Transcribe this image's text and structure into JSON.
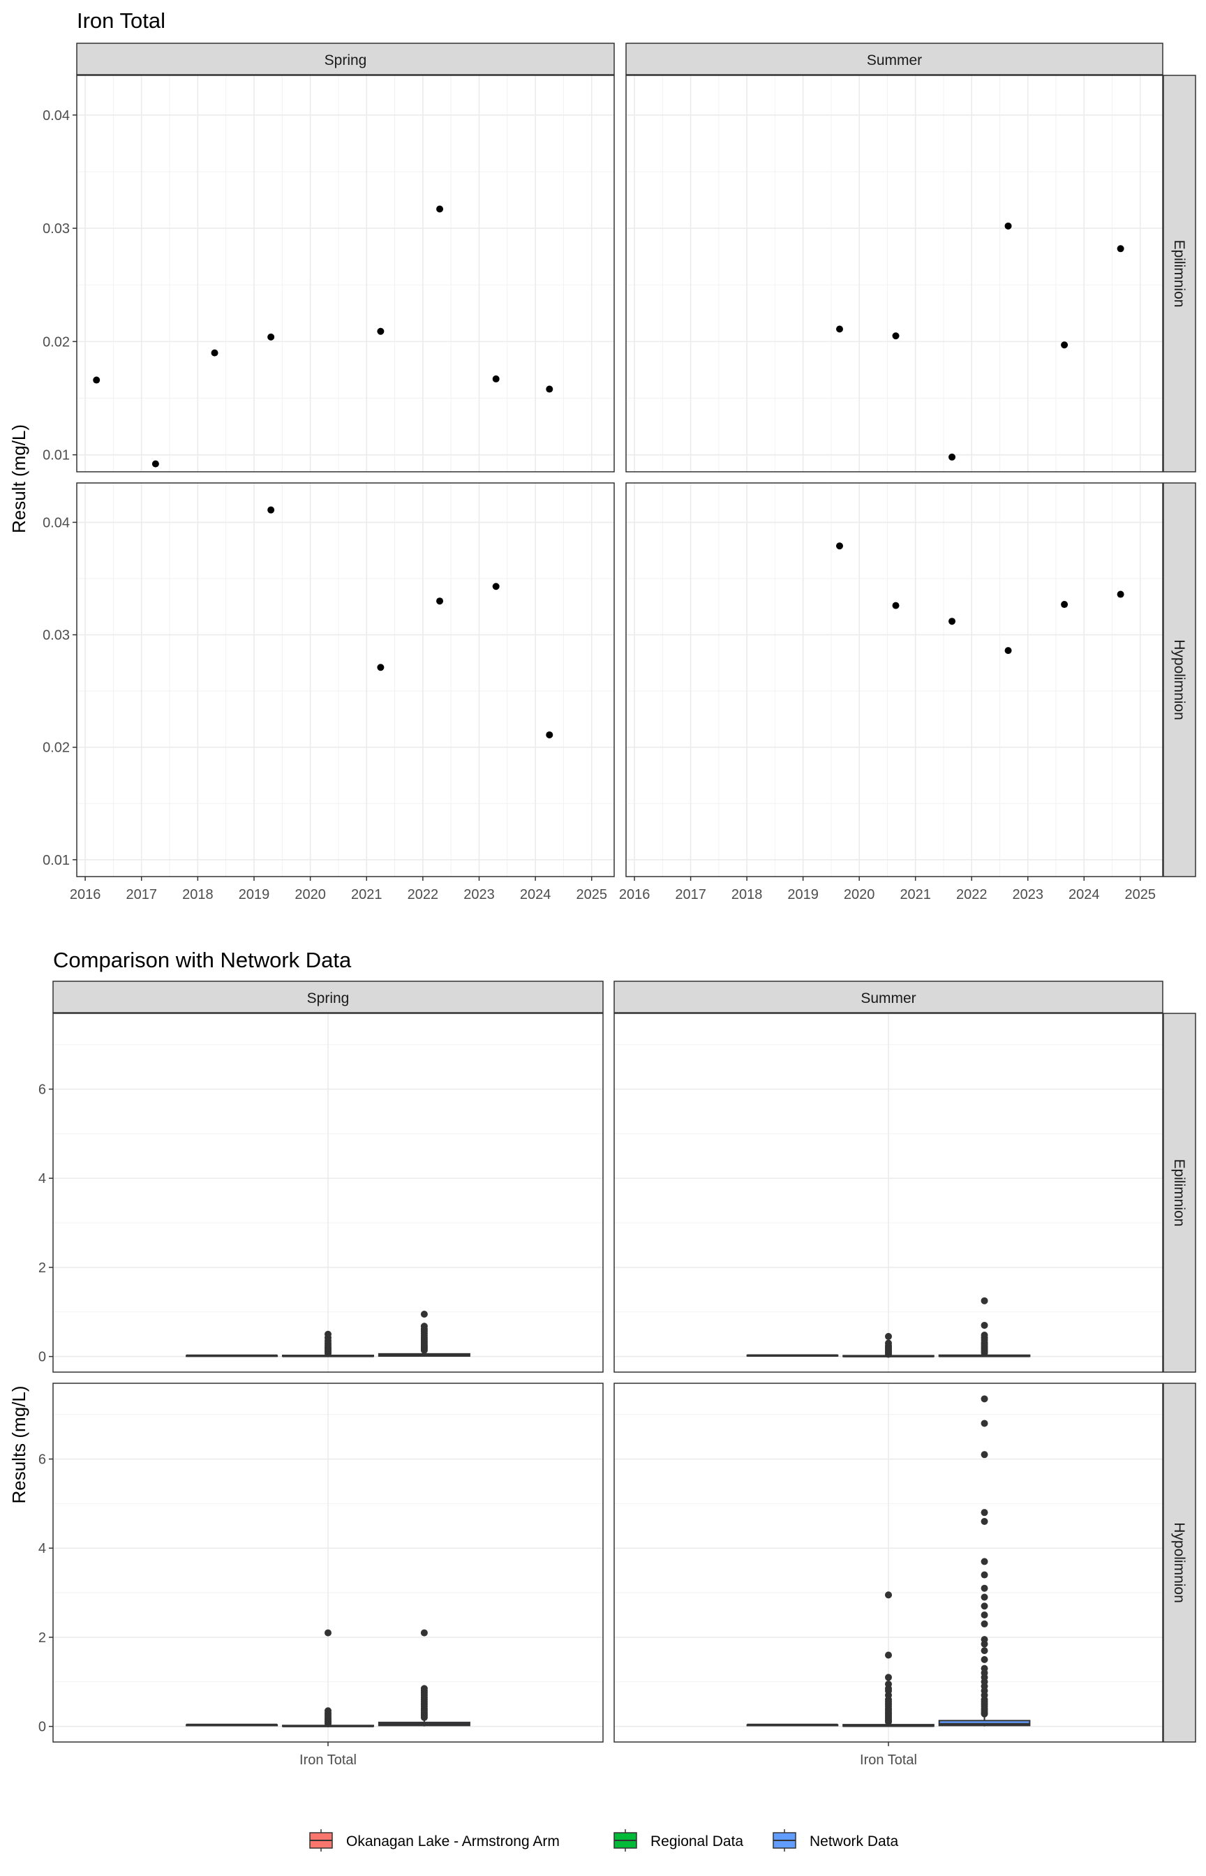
{
  "chart_data": [
    {
      "type": "scatter",
      "title": "Iron Total",
      "ylabel": "Result (mg/L)",
      "xlabel": "",
      "facet_cols": [
        "Spring",
        "Summer"
      ],
      "facet_rows": [
        "Epilimnion",
        "Hypolimnion"
      ],
      "x_ticks": [
        "2016",
        "2017",
        "2018",
        "2019",
        "2020",
        "2021",
        "2022",
        "2023",
        "2024",
        "2025"
      ],
      "y_ticks": [
        "0.01",
        "0.02",
        "0.03",
        "0.04"
      ],
      "xlim": [
        2015.85,
        2025.4
      ],
      "ylim": [
        0.0085,
        0.0435
      ],
      "grid": true,
      "panels": [
        {
          "col": "Spring",
          "row": "Epilimnion",
          "points": [
            [
              2016.2,
              0.0166
            ],
            [
              2017.25,
              0.0092
            ],
            [
              2018.3,
              0.019
            ],
            [
              2019.3,
              0.0204
            ],
            [
              2021.25,
              0.0209
            ],
            [
              2022.3,
              0.0317
            ],
            [
              2023.3,
              0.0167
            ],
            [
              2024.25,
              0.0158
            ]
          ]
        },
        {
          "col": "Summer",
          "row": "Epilimnion",
          "points": [
            [
              2019.65,
              0.0211
            ],
            [
              2020.65,
              0.0205
            ],
            [
              2021.65,
              0.0098
            ],
            [
              2022.65,
              0.0302
            ],
            [
              2023.65,
              0.0197
            ],
            [
              2024.65,
              0.0282
            ]
          ]
        },
        {
          "col": "Spring",
          "row": "Hypolimnion",
          "points": [
            [
              2019.3,
              0.0411
            ],
            [
              2021.25,
              0.0271
            ],
            [
              2022.3,
              0.033
            ],
            [
              2023.3,
              0.0343
            ],
            [
              2024.25,
              0.0211
            ]
          ]
        },
        {
          "col": "Summer",
          "row": "Hypolimnion",
          "points": [
            [
              2019.65,
              0.0379
            ],
            [
              2020.65,
              0.0326
            ],
            [
              2021.65,
              0.0312
            ],
            [
              2022.65,
              0.0286
            ],
            [
              2023.65,
              0.0327
            ],
            [
              2024.65,
              0.0336
            ]
          ]
        }
      ]
    },
    {
      "type": "box",
      "title": "Comparison with Network Data",
      "ylabel": "Results (mg/L)",
      "xlabel": "",
      "facet_cols": [
        "Spring",
        "Summer"
      ],
      "facet_rows": [
        "Epilimnion",
        "Hypolimnion"
      ],
      "categories": [
        "Iron Total"
      ],
      "y_ticks": [
        "0",
        "2",
        "4",
        "6"
      ],
      "ylim": [
        -0.35,
        7.7
      ],
      "grid": true,
      "series_names": [
        "Okanagan Lake - Armstrong Arm",
        "Regional Data",
        "Network Data"
      ],
      "series_colors": [
        "#F8766D",
        "#00BA38",
        "#619CFF"
      ],
      "panels": [
        {
          "col": "Spring",
          "row": "Epilimnion",
          "boxes": [
            {
              "series": "Okanagan Lake - Armstrong Arm",
              "q1": 0.015,
              "median": 0.018,
              "q3": 0.021,
              "whisker_low": 0.009,
              "whisker_high": 0.032,
              "outliers": []
            },
            {
              "series": "Regional Data",
              "q1": 0.005,
              "median": 0.012,
              "q3": 0.025,
              "whisker_low": 0.0,
              "whisker_high": 0.05,
              "outliers": [
                0.07,
                0.1,
                0.13,
                0.16,
                0.19,
                0.22,
                0.26,
                0.3,
                0.35,
                0.42,
                0.5
              ]
            },
            {
              "series": "Network Data",
              "q1": 0.01,
              "median": 0.025,
              "q3": 0.06,
              "whisker_low": 0.0,
              "whisker_high": 0.12,
              "outliers": [
                0.14,
                0.17,
                0.2,
                0.23,
                0.26,
                0.3,
                0.34,
                0.38,
                0.42,
                0.47,
                0.52,
                0.57,
                0.62,
                0.68,
                0.95
              ]
            }
          ]
        },
        {
          "col": "Summer",
          "row": "Epilimnion",
          "boxes": [
            {
              "series": "Okanagan Lake - Armstrong Arm",
              "q1": 0.017,
              "median": 0.021,
              "q3": 0.028,
              "whisker_low": 0.0098,
              "whisker_high": 0.0302,
              "outliers": []
            },
            {
              "series": "Regional Data",
              "q1": 0.003,
              "median": 0.008,
              "q3": 0.018,
              "whisker_low": 0.0,
              "whisker_high": 0.035,
              "outliers": [
                0.05,
                0.08,
                0.11,
                0.14,
                0.17,
                0.2,
                0.24,
                0.3,
                0.45
              ]
            },
            {
              "series": "Network Data",
              "q1": 0.005,
              "median": 0.012,
              "q3": 0.03,
              "whisker_low": 0.0,
              "whisker_high": 0.06,
              "outliers": [
                0.08,
                0.11,
                0.14,
                0.17,
                0.2,
                0.24,
                0.28,
                0.32,
                0.37,
                0.42,
                0.48,
                0.7,
                1.25
              ]
            }
          ]
        },
        {
          "col": "Spring",
          "row": "Hypolimnion",
          "boxes": [
            {
              "series": "Okanagan Lake - Armstrong Arm",
              "q1": 0.027,
              "median": 0.033,
              "q3": 0.0343,
              "whisker_low": 0.0211,
              "whisker_high": 0.0411,
              "outliers": []
            },
            {
              "series": "Regional Data",
              "q1": 0.003,
              "median": 0.008,
              "q3": 0.02,
              "whisker_low": 0.0,
              "whisker_high": 0.04,
              "outliers": [
                0.06,
                0.09,
                0.12,
                0.15,
                0.18,
                0.22,
                0.26,
                0.3,
                0.35,
                2.1
              ]
            },
            {
              "series": "Network Data",
              "q1": 0.02,
              "median": 0.05,
              "q3": 0.09,
              "whisker_low": 0.0,
              "whisker_high": 0.17,
              "outliers": [
                0.2,
                0.24,
                0.28,
                0.32,
                0.36,
                0.4,
                0.45,
                0.5,
                0.55,
                0.6,
                0.65,
                0.7,
                0.75,
                0.8,
                0.85,
                2.1
              ]
            }
          ]
        },
        {
          "col": "Summer",
          "row": "Hypolimnion",
          "boxes": [
            {
              "series": "Okanagan Lake - Armstrong Arm",
              "q1": 0.029,
              "median": 0.033,
              "q3": 0.034,
              "whisker_low": 0.0286,
              "whisker_high": 0.0379,
              "outliers": []
            },
            {
              "series": "Regional Data",
              "q1": 0.005,
              "median": 0.015,
              "q3": 0.04,
              "whisker_low": 0.0,
              "whisker_high": 0.08,
              "outliers": [
                0.1,
                0.13,
                0.16,
                0.2,
                0.24,
                0.28,
                0.32,
                0.36,
                0.4,
                0.45,
                0.5,
                0.55,
                0.6,
                0.7,
                0.8,
                0.85,
                0.95,
                1.1,
                1.6,
                2.95
              ]
            },
            {
              "series": "Network Data",
              "q1": 0.02,
              "median": 0.05,
              "q3": 0.13,
              "whisker_low": 0.0,
              "whisker_high": 0.25,
              "outliers": [
                0.28,
                0.32,
                0.36,
                0.4,
                0.45,
                0.5,
                0.55,
                0.6,
                0.7,
                0.8,
                0.9,
                1.0,
                1.1,
                1.2,
                1.3,
                1.5,
                1.7,
                1.85,
                1.95,
                2.3,
                2.5,
                2.7,
                2.9,
                3.1,
                3.4,
                3.7,
                4.6,
                4.8,
                6.1,
                6.8,
                7.35
              ]
            }
          ]
        }
      ]
    }
  ]
}
